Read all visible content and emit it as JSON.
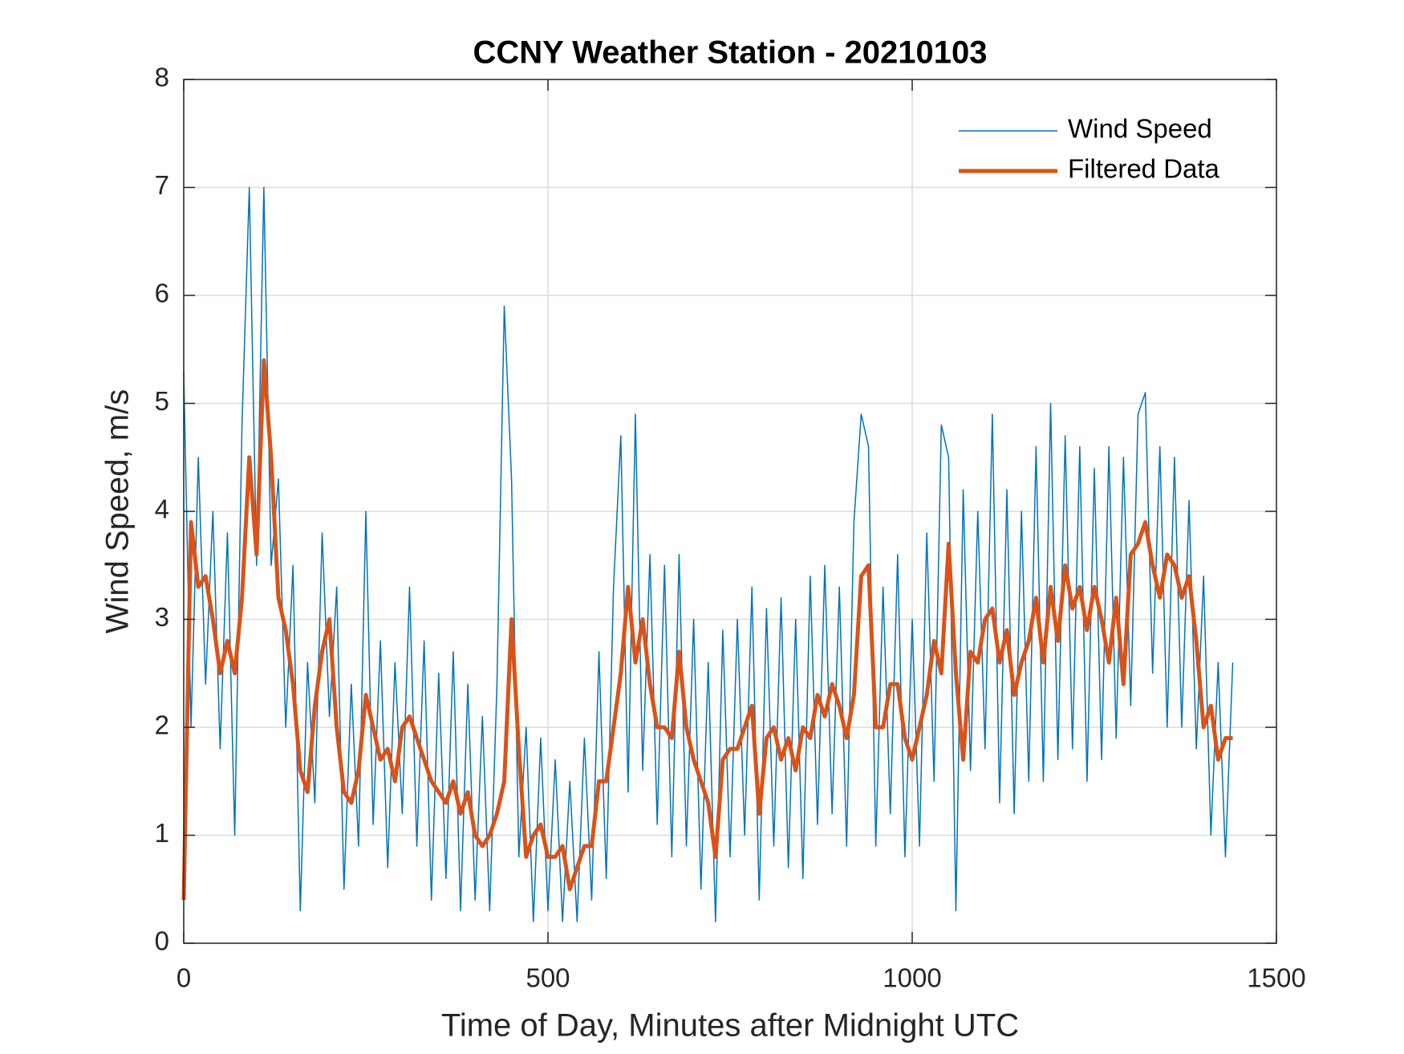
{
  "chart_data": {
    "type": "line",
    "title": "CCNY Weather Station - 20210103",
    "x_label": "Time of Day, Minutes after Midnight UTC",
    "y_label": "Wind Speed, m/s",
    "xlim": [
      0,
      1500
    ],
    "xticks": [
      0,
      500,
      1000,
      1500
    ],
    "ylim": [
      0,
      8
    ],
    "yticks": [
      0,
      1,
      2,
      3,
      4,
      5,
      6,
      7,
      8
    ],
    "grid": true,
    "legend": "upper right",
    "x": [
      0,
      10,
      20,
      30,
      40,
      50,
      60,
      70,
      80,
      90,
      100,
      110,
      120,
      130,
      140,
      150,
      160,
      170,
      180,
      190,
      200,
      210,
      220,
      230,
      240,
      250,
      260,
      270,
      280,
      290,
      300,
      310,
      320,
      330,
      340,
      350,
      360,
      370,
      380,
      390,
      400,
      410,
      420,
      430,
      440,
      450,
      460,
      470,
      480,
      490,
      500,
      510,
      520,
      530,
      540,
      550,
      560,
      570,
      580,
      590,
      600,
      610,
      620,
      630,
      640,
      650,
      660,
      670,
      680,
      690,
      700,
      710,
      720,
      730,
      740,
      750,
      760,
      770,
      780,
      790,
      800,
      810,
      820,
      830,
      840,
      850,
      860,
      870,
      880,
      890,
      900,
      910,
      920,
      930,
      940,
      950,
      960,
      970,
      980,
      990,
      1000,
      1010,
      1020,
      1030,
      1040,
      1050,
      1060,
      1070,
      1080,
      1090,
      1100,
      1110,
      1120,
      1130,
      1140,
      1150,
      1160,
      1170,
      1180,
      1190,
      1200,
      1210,
      1220,
      1230,
      1240,
      1250,
      1260,
      1270,
      1280,
      1290,
      1300,
      1310,
      1320,
      1330,
      1340,
      1350,
      1360,
      1370,
      1380,
      1390,
      1400,
      1410,
      1420,
      1430,
      1440
    ],
    "series": [
      {
        "name": "Wind Speed",
        "color": "#0072bd",
        "width": 1.5,
        "values": [
          5.3,
          2.0,
          4.5,
          2.4,
          4.0,
          1.8,
          3.8,
          1.0,
          4.8,
          7.0,
          3.5,
          7.0,
          3.5,
          4.3,
          2.0,
          3.5,
          0.3,
          2.6,
          1.3,
          3.8,
          2.1,
          3.3,
          0.5,
          2.4,
          0.9,
          4.0,
          1.1,
          2.8,
          0.7,
          2.6,
          1.2,
          3.3,
          0.9,
          2.8,
          0.4,
          2.5,
          0.6,
          2.7,
          0.3,
          2.4,
          0.4,
          2.1,
          0.3,
          2.4,
          5.9,
          4.3,
          0.8,
          2.0,
          0.2,
          1.9,
          0.3,
          1.7,
          0.2,
          1.5,
          0.2,
          1.9,
          0.4,
          2.7,
          0.6,
          3.3,
          4.7,
          1.4,
          4.9,
          1.6,
          3.6,
          1.1,
          3.5,
          0.8,
          3.6,
          0.9,
          3.0,
          0.5,
          2.6,
          0.2,
          2.9,
          0.8,
          3.0,
          1.0,
          3.3,
          0.4,
          3.1,
          0.9,
          3.2,
          0.7,
          3.0,
          0.6,
          3.4,
          1.1,
          3.5,
          1.2,
          3.3,
          0.9,
          3.9,
          4.9,
          4.6,
          0.9,
          3.3,
          1.2,
          3.6,
          0.8,
          3.0,
          0.9,
          3.8,
          1.5,
          4.8,
          4.5,
          0.3,
          4.2,
          1.6,
          4.0,
          1.8,
          4.9,
          1.3,
          4.2,
          1.2,
          4.0,
          1.5,
          4.6,
          1.5,
          5.0,
          1.7,
          4.7,
          1.8,
          4.6,
          1.5,
          4.4,
          1.7,
          4.6,
          1.9,
          4.5,
          2.2,
          4.9,
          5.1,
          2.5,
          4.6,
          2.0,
          4.5,
          2.0,
          4.1,
          1.8,
          3.4,
          1.0,
          2.6,
          0.8,
          2.6
        ]
      },
      {
        "name": "Filtered Data",
        "color": "#d95319",
        "width": 5,
        "values": [
          0.4,
          3.9,
          3.3,
          3.4,
          3.0,
          2.5,
          2.8,
          2.5,
          3.2,
          4.5,
          3.6,
          5.4,
          4.5,
          3.2,
          2.9,
          2.4,
          1.6,
          1.4,
          2.2,
          2.7,
          3.0,
          2.0,
          1.4,
          1.3,
          1.6,
          2.3,
          2.0,
          1.7,
          1.8,
          1.5,
          2.0,
          2.1,
          1.9,
          1.7,
          1.5,
          1.4,
          1.3,
          1.5,
          1.2,
          1.4,
          1.0,
          0.9,
          1.0,
          1.2,
          1.5,
          3.0,
          1.8,
          0.8,
          1.0,
          1.1,
          0.8,
          0.8,
          0.9,
          0.5,
          0.7,
          0.9,
          0.9,
          1.5,
          1.5,
          2.0,
          2.5,
          3.3,
          2.6,
          3.0,
          2.4,
          2.0,
          2.0,
          1.9,
          2.7,
          2.0,
          1.7,
          1.5,
          1.3,
          0.8,
          1.7,
          1.8,
          1.8,
          2.0,
          2.2,
          1.2,
          1.9,
          2.0,
          1.7,
          1.9,
          1.6,
          2.0,
          1.9,
          2.3,
          2.1,
          2.4,
          2.2,
          1.9,
          2.3,
          3.4,
          3.5,
          2.0,
          2.0,
          2.4,
          2.4,
          1.9,
          1.7,
          2.0,
          2.3,
          2.8,
          2.5,
          3.7,
          2.5,
          1.7,
          2.7,
          2.6,
          3.0,
          3.1,
          2.6,
          2.9,
          2.3,
          2.6,
          2.8,
          3.2,
          2.6,
          3.3,
          2.8,
          3.5,
          3.1,
          3.3,
          2.9,
          3.3,
          3.0,
          2.6,
          3.2,
          2.4,
          3.6,
          3.7,
          3.9,
          3.5,
          3.2,
          3.6,
          3.5,
          3.2,
          3.4,
          2.8,
          2.0,
          2.2,
          1.7,
          1.9,
          1.9
        ]
      }
    ]
  }
}
